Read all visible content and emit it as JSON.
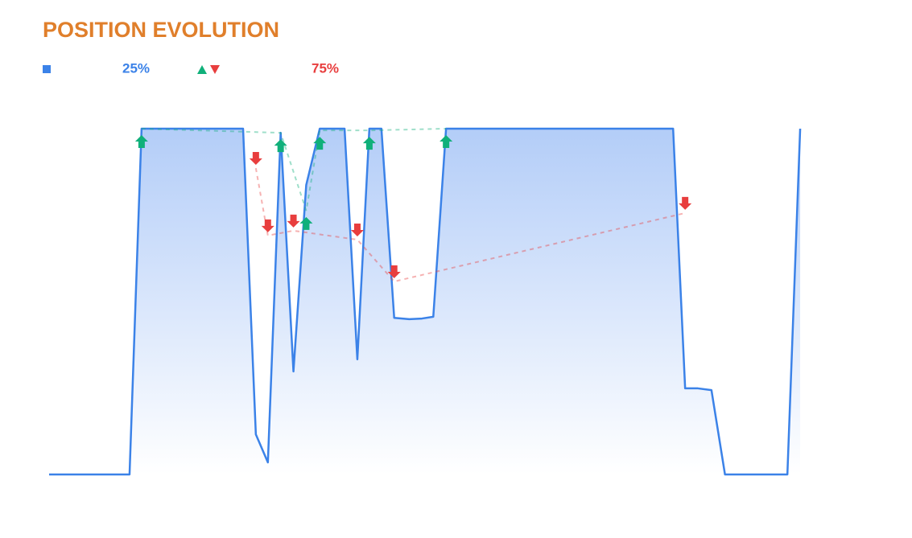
{
  "chart_data": {
    "type": "line",
    "title": "POSITION EVOLUTION",
    "legend_labels": [
      "25%",
      "75%"
    ],
    "xlim": [
      0,
      100
    ],
    "ylim": [
      0,
      100
    ],
    "series": [
      {
        "color": "#3b82e8",
        "fill": true,
        "x": [
          0,
          10.7,
          12.3,
          25.8,
          27.5,
          29.1,
          30.8,
          32.5,
          34.2,
          36.0,
          39.3,
          41.0,
          42.6,
          44.2,
          45.9,
          47.9,
          49.6,
          51.1,
          52.8,
          83.0,
          84.6,
          86.3,
          88.1,
          89.9,
          98.2,
          99.9
        ],
        "values": [
          0,
          0,
          100,
          100,
          11.6,
          3.5,
          98.8,
          29.8,
          83.7,
          100,
          100,
          33.3,
          100,
          100,
          45.3,
          44.9,
          45.1,
          45.6,
          100,
          100,
          24.9,
          24.9,
          24.4,
          0,
          0,
          100
        ]
      },
      {
        "color": "#10b07a",
        "marker": "up",
        "x": [
          12.3,
          30.8,
          34.2,
          36.0,
          42.6,
          52.8
        ],
        "values": [
          100,
          98.8,
          76.3,
          99.5,
          99.5,
          100
        ]
      },
      {
        "color": "#e83e3e",
        "marker": "down",
        "x": [
          27.5,
          29.1,
          32.5,
          41.0,
          45.9,
          84.6
        ],
        "values": [
          88.6,
          69.1,
          70.5,
          67.9,
          55.8,
          75.6
        ]
      }
    ]
  }
}
